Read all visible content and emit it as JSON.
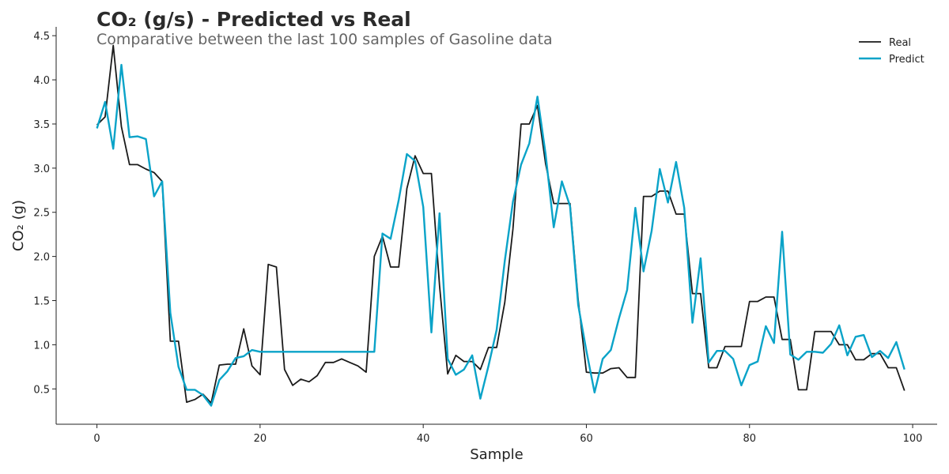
{
  "chart_data": {
    "type": "line",
    "title": "CO₂ (g/s) - Predicted vs Real",
    "subtitle": "Comparative between the last 100 samples of Gasoline data",
    "xlabel": "Sample",
    "ylabel": "CO₂ (g)",
    "xlim": [
      -5,
      103
    ],
    "ylim": [
      0.1,
      4.6
    ],
    "xticks": [
      0,
      20,
      40,
      60,
      80,
      100
    ],
    "xtick_labels": [
      "0",
      "20",
      "40",
      "60",
      "80",
      "100"
    ],
    "yticks": [
      0.5,
      1.0,
      1.5,
      2.0,
      2.5,
      3.0,
      3.5,
      4.0,
      4.5
    ],
    "ytick_labels": [
      "0.5",
      "1.0",
      "1.5",
      "2.0",
      "2.5",
      "3.0",
      "3.5",
      "4.0",
      "4.5"
    ],
    "grid": false,
    "legend_position": "top-right",
    "series": [
      {
        "name": "Real",
        "color": "#1a1a1a",
        "values": [
          3.49,
          3.58,
          4.39,
          3.47,
          3.04,
          3.04,
          2.99,
          2.95,
          2.85,
          1.04,
          1.04,
          0.35,
          0.38,
          0.44,
          0.34,
          0.77,
          0.78,
          0.78,
          1.18,
          0.76,
          0.66,
          1.91,
          1.88,
          0.72,
          0.54,
          0.61,
          0.58,
          0.65,
          0.8,
          0.8,
          0.84,
          0.8,
          0.76,
          0.69,
          2.0,
          2.23,
          1.88,
          1.88,
          2.77,
          3.14,
          2.94,
          2.94,
          1.67,
          0.67,
          0.88,
          0.81,
          0.81,
          0.72,
          0.97,
          0.97,
          1.48,
          2.31,
          3.5,
          3.5,
          3.71,
          3.05,
          2.6,
          2.6,
          2.6,
          1.51,
          0.69,
          0.68,
          0.68,
          0.73,
          0.74,
          0.63,
          0.63,
          2.68,
          2.68,
          2.74,
          2.74,
          2.48,
          2.48,
          1.58,
          1.58,
          0.74,
          0.74,
          0.98,
          0.98,
          0.98,
          1.49,
          1.49,
          1.54,
          1.54,
          1.06,
          1.06,
          0.49,
          0.49,
          1.15,
          1.15,
          1.15,
          1.0,
          1.0,
          0.83,
          0.83,
          0.9,
          0.9,
          0.74,
          0.74,
          0.48
        ]
      },
      {
        "name": "Predict",
        "color": "#0aa3c8",
        "values": [
          3.45,
          3.75,
          3.22,
          4.17,
          3.35,
          3.36,
          3.33,
          2.68,
          2.85,
          1.36,
          0.75,
          0.49,
          0.49,
          0.43,
          0.31,
          0.6,
          0.7,
          0.85,
          0.87,
          0.94,
          0.92,
          0.92,
          0.92,
          0.92,
          0.92,
          0.92,
          0.92,
          0.92,
          0.92,
          0.92,
          0.92,
          0.92,
          0.92,
          0.92,
          0.92,
          2.26,
          2.2,
          2.64,
          3.16,
          3.08,
          2.56,
          1.14,
          2.49,
          0.84,
          0.66,
          0.72,
          0.88,
          0.39,
          0.76,
          1.17,
          1.95,
          2.62,
          3.04,
          3.28,
          3.81,
          3.16,
          2.33,
          2.85,
          2.57,
          1.45,
          0.93,
          0.46,
          0.84,
          0.94,
          1.3,
          1.62,
          2.55,
          1.83,
          2.29,
          2.99,
          2.61,
          3.07,
          2.55,
          1.25,
          1.98,
          0.8,
          0.93,
          0.93,
          0.84,
          0.54,
          0.77,
          0.81,
          1.21,
          1.02,
          2.28,
          0.89,
          0.83,
          0.92,
          0.92,
          0.91,
          1.01,
          1.22,
          0.88,
          1.09,
          1.11,
          0.86,
          0.93,
          0.85,
          1.03,
          0.72
        ]
      }
    ]
  }
}
